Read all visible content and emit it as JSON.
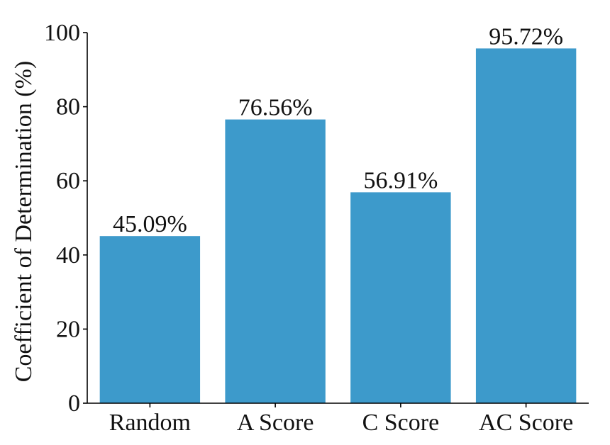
{
  "chart_data": {
    "type": "bar",
    "categories": [
      "Random",
      "A Score",
      "C Score",
      "AC Score"
    ],
    "values": [
      45.09,
      76.56,
      56.91,
      95.72
    ],
    "data_labels": [
      "45.09%",
      "76.56%",
      "56.91%",
      "95.72%"
    ],
    "title": "",
    "xlabel": "",
    "ylabel": "Coefficient of Determination (%)",
    "ylim": [
      0,
      100
    ],
    "yticks": [
      0,
      20,
      40,
      60,
      80,
      100
    ],
    "grid": false,
    "bar_color": "#3d9acb",
    "axis_color": "#000000"
  }
}
